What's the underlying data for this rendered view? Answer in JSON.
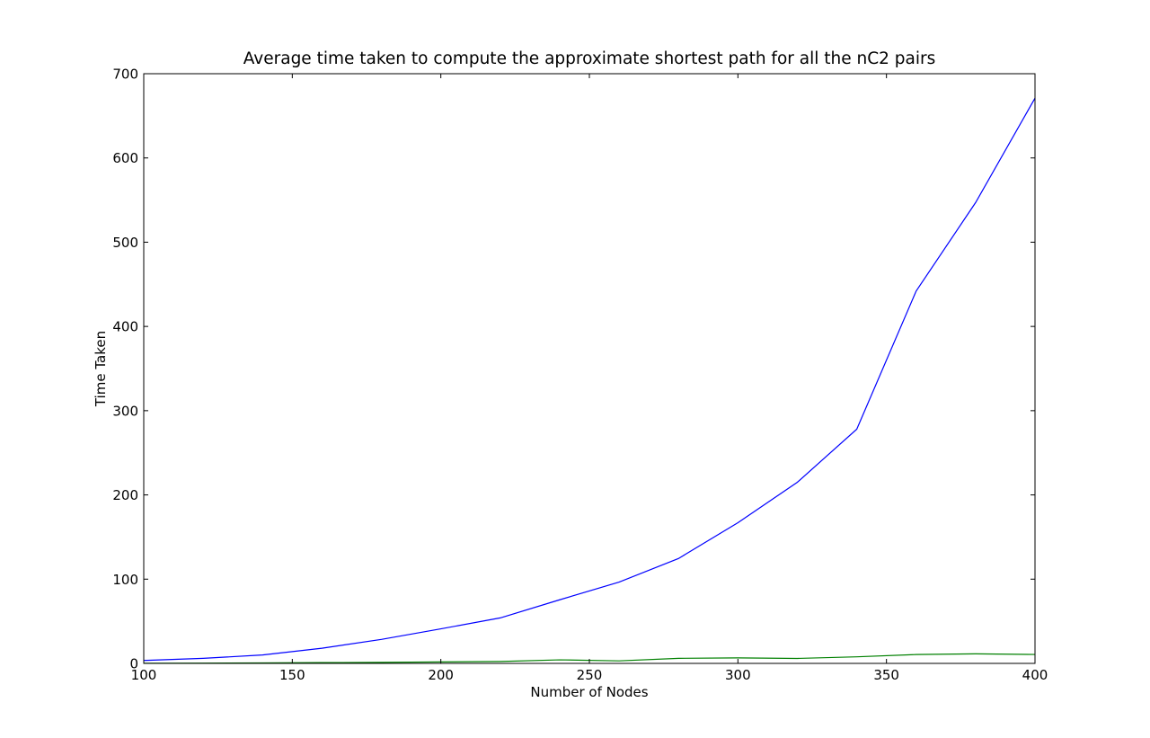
{
  "chart_data": {
    "type": "line",
    "title": "Average time taken to compute the approximate shortest path for all the nC2 pairs",
    "xlabel": "Number of Nodes",
    "ylabel": "Time Taken",
    "xlim": [
      100,
      400
    ],
    "ylim": [
      0,
      700
    ],
    "xticks": [
      100,
      150,
      200,
      250,
      300,
      350,
      400
    ],
    "yticks": [
      0,
      100,
      200,
      300,
      400,
      500,
      600,
      700
    ],
    "grid": false,
    "legend": "none",
    "x": [
      100,
      120,
      140,
      160,
      180,
      200,
      220,
      240,
      260,
      280,
      300,
      320,
      340,
      360,
      380,
      400
    ],
    "series": [
      {
        "color": "#0000ff",
        "values": [
          3.5,
          6,
          10,
          18,
          28.5,
          41,
          54,
          75.5,
          96.5,
          124.5,
          167,
          215,
          278,
          442,
          547,
          671
        ]
      },
      {
        "color": "#008000",
        "values": [
          0.2,
          0.3,
          0.5,
          0.9,
          1.2,
          1.7,
          2.3,
          4.2,
          3,
          6,
          6.5,
          5.9,
          7.8,
          10.5,
          11.3,
          10.6
        ]
      }
    ]
  }
}
